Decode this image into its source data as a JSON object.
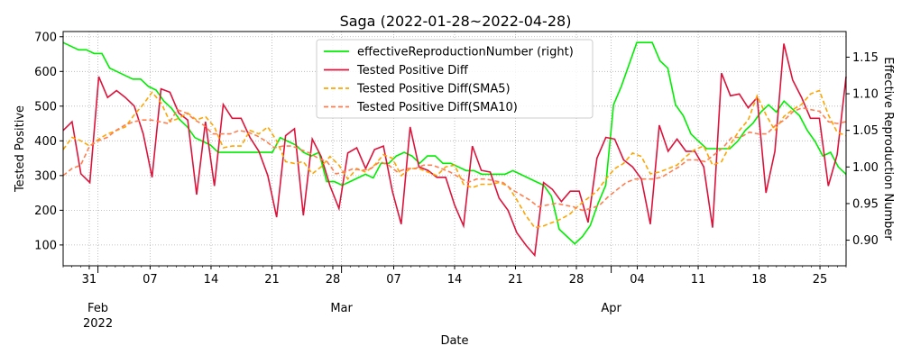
{
  "chart_data": {
    "type": "line",
    "title": "Saga (2022-01-28~2022-04-28)",
    "xlabel": "Date",
    "ylabel_left": "Tested Positive",
    "ylabel_right": "Effective Reproduction Number",
    "x_start": "2022-01-28",
    "x_end": "2022-04-28",
    "ylim_left": [
      40,
      715
    ],
    "ylim_right": [
      0.865,
      1.185
    ],
    "grid": true,
    "legend_position": "top-center",
    "x_ticks_major": [
      {
        "date": "2022-02-01",
        "label": "Feb",
        "sublabel": "2022"
      },
      {
        "date": "2022-03-01",
        "label": "Mar",
        "sublabel": ""
      },
      {
        "date": "2022-04-01",
        "label": "Apr",
        "sublabel": ""
      }
    ],
    "x_ticks_minor": [
      {
        "date": "2022-01-31",
        "label": "31"
      },
      {
        "date": "2022-02-07",
        "label": "07"
      },
      {
        "date": "2022-02-14",
        "label": "14"
      },
      {
        "date": "2022-02-21",
        "label": "21"
      },
      {
        "date": "2022-02-28",
        "label": "28"
      },
      {
        "date": "2022-03-07",
        "label": "07"
      },
      {
        "date": "2022-03-14",
        "label": "14"
      },
      {
        "date": "2022-03-21",
        "label": "21"
      },
      {
        "date": "2022-03-28",
        "label": "28"
      },
      {
        "date": "2022-04-04",
        "label": "04"
      },
      {
        "date": "2022-04-11",
        "label": "11"
      },
      {
        "date": "2022-04-18",
        "label": "18"
      },
      {
        "date": "2022-04-25",
        "label": "25"
      }
    ],
    "y_ticks_left": [
      100,
      200,
      300,
      400,
      500,
      600,
      700
    ],
    "y_ticks_right": [
      0.9,
      0.95,
      1.0,
      1.05,
      1.1,
      1.15
    ],
    "series": [
      {
        "name": "effectiveReproductionNumber (right)",
        "axis": "right",
        "color": "#00ee00",
        "style": "solid",
        "values": [
          1.17,
          1.165,
          1.16,
          1.16,
          1.155,
          1.155,
          1.135,
          1.13,
          1.125,
          1.12,
          1.12,
          1.11,
          1.105,
          1.09,
          1.08,
          1.065,
          1.055,
          1.04,
          1.035,
          1.03,
          1.02,
          1.02,
          1.02,
          1.02,
          1.02,
          1.02,
          1.02,
          1.02,
          1.04,
          1.035,
          1.03,
          1.02,
          1.015,
          1.02,
          0.98,
          0.98,
          0.975,
          0.98,
          0.985,
          0.99,
          0.985,
          1.005,
          1.005,
          1.015,
          1.02,
          1.015,
          1.005,
          1.015,
          1.015,
          1.005,
          1.005,
          1.0,
          0.995,
          0.995,
          0.99,
          0.99,
          0.99,
          0.99,
          0.995,
          0.99,
          0.985,
          0.98,
          0.975,
          0.96,
          0.915,
          0.905,
          0.895,
          0.905,
          0.92,
          0.95,
          0.975,
          1.085,
          1.11,
          1.14,
          1.17,
          1.17,
          1.17,
          1.145,
          1.135,
          1.085,
          1.07,
          1.045,
          1.035,
          1.025,
          1.025,
          1.025,
          1.025,
          1.035,
          1.05,
          1.06,
          1.075,
          1.085,
          1.075,
          1.09,
          1.08,
          1.07,
          1.05,
          1.035,
          1.015,
          1.02,
          1.0,
          0.99
        ]
      },
      {
        "name": "Tested Positive Diff",
        "axis": "left",
        "color": "#dc143c",
        "style": "solid",
        "values": [
          430,
          455,
          305,
          280,
          585,
          525,
          545,
          525,
          500,
          420,
          295,
          550,
          540,
          480,
          460,
          245,
          455,
          270,
          505,
          465,
          465,
          410,
          370,
          300,
          180,
          415,
          435,
          185,
          405,
          355,
          270,
          205,
          365,
          380,
          320,
          375,
          385,
          255,
          160,
          440,
          325,
          315,
          295,
          295,
          215,
          155,
          385,
          315,
          310,
          235,
          200,
          135,
          100,
          70,
          280,
          260,
          225,
          255,
          255,
          165,
          350,
          410,
          405,
          345,
          325,
          290,
          160,
          445,
          370,
          405,
          370,
          370,
          325,
          150,
          595,
          530,
          535,
          495,
          525,
          250,
          370,
          680,
          575,
          525,
          465,
          465,
          270,
          360,
          585
        ]
      },
      {
        "name": "Tested Positive Diff(SMA5)",
        "axis": "left",
        "color": "#ffa500",
        "style": "dashed",
        "values": [
          375,
          410,
          400,
          385,
          405,
          420,
          430,
          440,
          475,
          505,
          540,
          510,
          455,
          465,
          480,
          460,
          470,
          440,
          380,
          385,
          385,
          430,
          420,
          440,
          400,
          340,
          335,
          340,
          305,
          325,
          355,
          330,
          290,
          320,
          310,
          330,
          360,
          350,
          300,
          320,
          320,
          310,
          300,
          325,
          330,
          275,
          265,
          275,
          275,
          280,
          270,
          230,
          185,
          150,
          155,
          165,
          175,
          190,
          215,
          235,
          255,
          290,
          320,
          335,
          365,
          355,
          305,
          310,
          320,
          330,
          355,
          375,
          385,
          330,
          340,
          390,
          430,
          460,
          530,
          475,
          430,
          470,
          490,
          505,
          535,
          545,
          475,
          425,
          415
        ]
      },
      {
        "name": "Tested Positive Diff(SMA10)",
        "axis": "left",
        "color": "#ff7f50",
        "style": "dashed",
        "values": [
          300,
          320,
          330,
          385,
          400,
          410,
          430,
          445,
          455,
          460,
          460,
          455,
          450,
          490,
          480,
          460,
          445,
          420,
          420,
          420,
          430,
          425,
          415,
          400,
          380,
          385,
          385,
          375,
          365,
          350,
          340,
          305,
          310,
          320,
          315,
          320,
          340,
          330,
          310,
          320,
          320,
          330,
          330,
          320,
          310,
          295,
          280,
          290,
          290,
          285,
          280,
          260,
          245,
          230,
          210,
          215,
          220,
          215,
          210,
          200,
          205,
          215,
          240,
          260,
          280,
          290,
          290,
          290,
          295,
          310,
          325,
          345,
          345,
          340,
          360,
          380,
          410,
          410,
          425,
          420,
          420,
          445,
          460,
          485,
          495,
          490,
          485,
          455,
          450,
          455
        ]
      }
    ]
  }
}
